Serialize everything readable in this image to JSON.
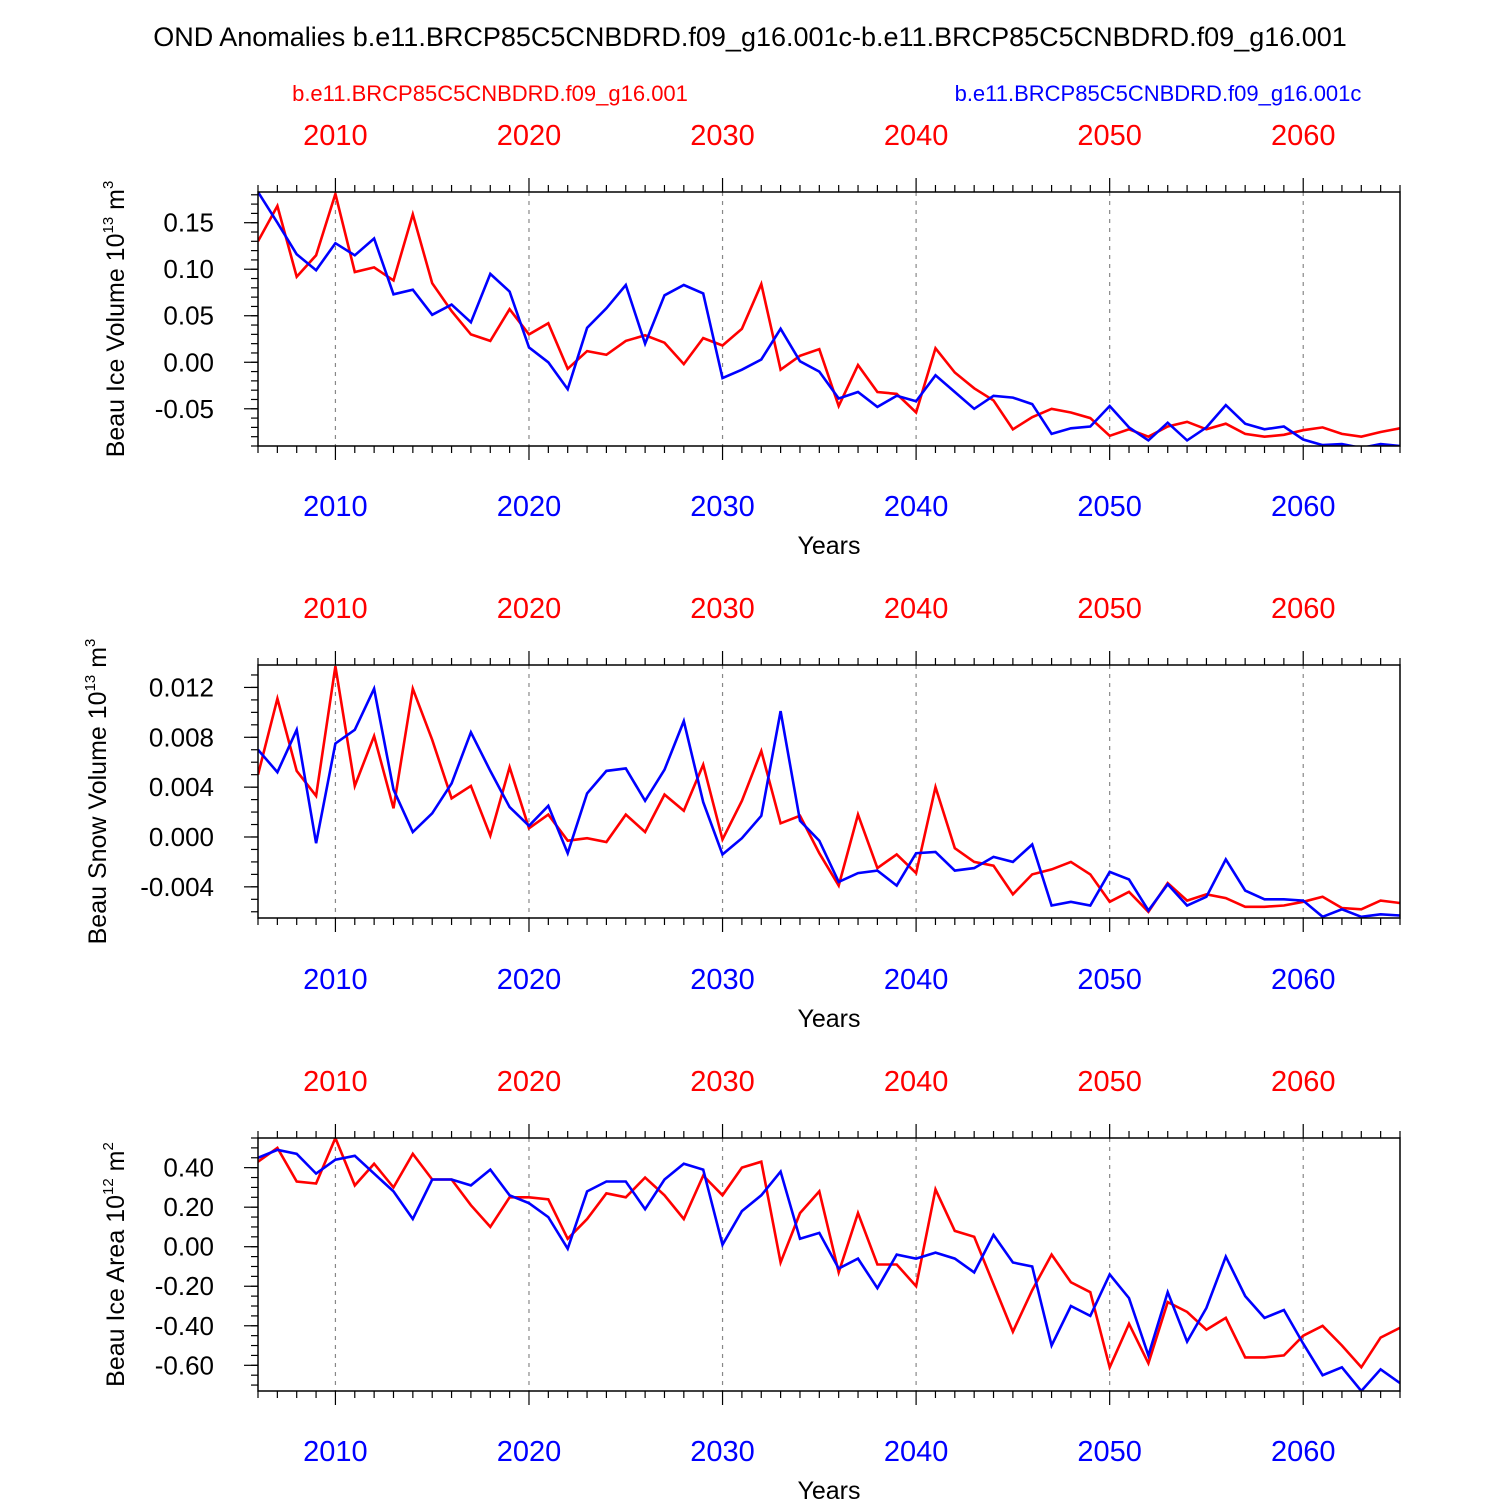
{
  "title": "OND Anomalies b.e11.BRCP85C5CNBDRD.f09_g16.001c-b.e11.BRCP85C5CNBDRD.f09_g16.001",
  "legend": {
    "left_label": "b.e11.BRCP85C5CNBDRD.f09_g16.001",
    "right_label": "b.e11.BRCP85C5CNBDRD.f09_g16.001c",
    "left_color": "#ff0000",
    "right_color": "#0000ff"
  },
  "colors": {
    "red": "#ff0000",
    "blue": "#0000ff",
    "grid": "#888888",
    "axis": "#000000"
  },
  "chart_data": [
    {
      "type": "line",
      "ylabel": "Beau Ice Volume 10",
      "ylabel_exp": "13",
      "ylabel_unit": " m",
      "ylabel_unit_exp": "3",
      "xlabel": "Years",
      "xlim": [
        2006,
        2065
      ],
      "ylim": [
        -0.09,
        0.183
      ],
      "xticks": [
        2010,
        2020,
        2030,
        2040,
        2050,
        2060
      ],
      "xtick_labels": [
        "2010",
        "2020",
        "2030",
        "2040",
        "2050",
        "2060"
      ],
      "yticks": [
        0.15,
        0.1,
        0.05,
        0.0,
        -0.05
      ],
      "ytick_labels": [
        "0.15",
        "0.10",
        "0.05",
        "0.00",
        "-0.05"
      ],
      "y_minor_step": 0.01,
      "vgrid": [
        2010,
        2020,
        2030,
        2040,
        2050,
        2060
      ],
      "series": [
        {
          "name": "b.e11.BRCP85C5CNBDRD.f09_g16.001",
          "color": "#ff0000",
          "x0": 2006,
          "values": [
            0.13,
            0.168,
            0.092,
            0.115,
            0.181,
            0.097,
            0.102,
            0.088,
            0.159,
            0.085,
            0.055,
            0.03,
            0.023,
            0.057,
            0.03,
            0.042,
            -0.007,
            0.012,
            0.008,
            0.023,
            0.029,
            0.021,
            -0.002,
            0.026,
            0.018,
            0.036,
            0.084,
            -0.008,
            0.007,
            0.014,
            -0.047,
            -0.003,
            -0.032,
            -0.034,
            -0.054,
            0.015,
            -0.011,
            -0.028,
            -0.041,
            -0.072,
            -0.059,
            -0.05,
            -0.054,
            -0.06,
            -0.079,
            -0.072,
            -0.08,
            -0.069,
            -0.064,
            -0.072,
            -0.066,
            -0.077,
            -0.08,
            -0.078,
            -0.073,
            -0.07,
            -0.077,
            -0.08,
            -0.075,
            -0.071
          ]
        },
        {
          "name": "b.e11.BRCP85C5CNBDRD.f09_g16.001c",
          "color": "#0000ff",
          "x0": 2006,
          "values": [
            0.183,
            0.15,
            0.116,
            0.099,
            0.128,
            0.115,
            0.133,
            0.073,
            0.078,
            0.051,
            0.062,
            0.043,
            0.095,
            0.076,
            0.016,
            0.0,
            -0.029,
            0.037,
            0.058,
            0.083,
            0.02,
            0.072,
            0.083,
            0.074,
            -0.017,
            -0.008,
            0.003,
            0.036,
            0.001,
            -0.01,
            -0.039,
            -0.032,
            -0.048,
            -0.036,
            -0.042,
            -0.014,
            -0.032,
            -0.05,
            -0.036,
            -0.038,
            -0.045,
            -0.077,
            -0.071,
            -0.069,
            -0.047,
            -0.07,
            -0.084,
            -0.065,
            -0.084,
            -0.07,
            -0.046,
            -0.066,
            -0.072,
            -0.069,
            -0.083,
            -0.089,
            -0.088,
            -0.092,
            -0.088,
            -0.09
          ]
        }
      ]
    },
    {
      "type": "line",
      "ylabel": "Beau Snow Volume 10",
      "ylabel_exp": "13",
      "ylabel_unit": " m",
      "ylabel_unit_exp": "3",
      "xlabel": "Years",
      "xlim": [
        2006,
        2065
      ],
      "ylim": [
        -0.0065,
        0.0138
      ],
      "xticks": [
        2010,
        2020,
        2030,
        2040,
        2050,
        2060
      ],
      "xtick_labels": [
        "2010",
        "2020",
        "2030",
        "2040",
        "2050",
        "2060"
      ],
      "yticks": [
        0.012,
        0.008,
        0.004,
        0.0,
        -0.004
      ],
      "ytick_labels": [
        "0.012",
        "0.008",
        "0.004",
        "0.000",
        "-0.004"
      ],
      "y_minor_step": 0.001,
      "vgrid": [
        2010,
        2020,
        2030,
        2040,
        2050,
        2060
      ],
      "series": [
        {
          "name": "b.e11.BRCP85C5CNBDRD.f09_g16.001",
          "color": "#ff0000",
          "x0": 2006,
          "values": [
            0.005,
            0.0111,
            0.0053,
            0.0033,
            0.0137,
            0.0041,
            0.0081,
            0.0023,
            0.0119,
            0.0078,
            0.0031,
            0.0041,
            0.0001,
            0.0056,
            0.0007,
            0.0018,
            -0.0003,
            -0.0001,
            -0.0004,
            0.0018,
            0.0004,
            0.0034,
            0.0021,
            0.0058,
            -0.0002,
            0.0029,
            0.0069,
            0.0011,
            0.0017,
            -0.0013,
            -0.0039,
            0.0018,
            -0.0025,
            -0.0014,
            -0.0029,
            0.004,
            -0.0009,
            -0.002,
            -0.0023,
            -0.0046,
            -0.003,
            -0.0026,
            -0.002,
            -0.003,
            -0.0052,
            -0.0044,
            -0.006,
            -0.0037,
            -0.0051,
            -0.0046,
            -0.0049,
            -0.0056,
            -0.0056,
            -0.0055,
            -0.0052,
            -0.0048,
            -0.0057,
            -0.0058,
            -0.0051,
            -0.0053
          ]
        },
        {
          "name": "b.e11.BRCP85C5CNBDRD.f09_g16.001c",
          "color": "#0000ff",
          "x0": 2006,
          "values": [
            0.007,
            0.0052,
            0.0086,
            -0.0005,
            0.0075,
            0.0086,
            0.0119,
            0.0038,
            0.0004,
            0.0019,
            0.0043,
            0.0084,
            0.0053,
            0.0024,
            0.0009,
            0.0025,
            -0.0013,
            0.0035,
            0.0053,
            0.0055,
            0.0029,
            0.0054,
            0.0093,
            0.0028,
            -0.0014,
            -0.0001,
            0.0017,
            0.0101,
            0.0013,
            -0.0003,
            -0.0036,
            -0.0029,
            -0.0027,
            -0.0039,
            -0.0013,
            -0.0012,
            -0.0027,
            -0.0025,
            -0.0016,
            -0.002,
            -0.0006,
            -0.0055,
            -0.0052,
            -0.0055,
            -0.0028,
            -0.0034,
            -0.0059,
            -0.0038,
            -0.0055,
            -0.0048,
            -0.0018,
            -0.0043,
            -0.005,
            -0.005,
            -0.0051,
            -0.0064,
            -0.0058,
            -0.0064,
            -0.0062,
            -0.0063
          ]
        }
      ]
    },
    {
      "type": "line",
      "ylabel": "Beau Ice Area 10",
      "ylabel_exp": "12",
      "ylabel_unit": " m",
      "ylabel_unit_exp": "2",
      "xlabel": "Years",
      "xlim": [
        2006,
        2065
      ],
      "ylim": [
        -0.73,
        0.55
      ],
      "xticks": [
        2010,
        2020,
        2030,
        2040,
        2050,
        2060
      ],
      "xtick_labels": [
        "2010",
        "2020",
        "2030",
        "2040",
        "2050",
        "2060"
      ],
      "yticks": [
        0.4,
        0.2,
        0.0,
        -0.2,
        -0.4,
        -0.6
      ],
      "ytick_labels": [
        "0.40",
        "0.20",
        "0.00",
        "-0.20",
        "-0.40",
        "-0.60"
      ],
      "y_minor_step": 0.05,
      "vgrid": [
        2010,
        2020,
        2030,
        2040,
        2050,
        2060
      ],
      "series": [
        {
          "name": "b.e11.BRCP85C5CNBDRD.f09_g16.001",
          "color": "#ff0000",
          "x0": 2006,
          "values": [
            0.43,
            0.5,
            0.33,
            0.32,
            0.55,
            0.31,
            0.42,
            0.3,
            0.47,
            0.34,
            0.34,
            0.21,
            0.1,
            0.25,
            0.25,
            0.24,
            0.04,
            0.14,
            0.27,
            0.25,
            0.35,
            0.26,
            0.14,
            0.36,
            0.26,
            0.4,
            0.43,
            -0.08,
            0.17,
            0.28,
            -0.13,
            0.17,
            -0.09,
            -0.09,
            -0.2,
            0.29,
            0.08,
            0.05,
            -0.19,
            -0.43,
            -0.22,
            -0.04,
            -0.18,
            -0.23,
            -0.61,
            -0.39,
            -0.59,
            -0.28,
            -0.33,
            -0.42,
            -0.36,
            -0.56,
            -0.56,
            -0.55,
            -0.45,
            -0.4,
            -0.5,
            -0.61,
            -0.46,
            -0.41
          ]
        },
        {
          "name": "b.e11.BRCP85C5CNBDRD.f09_g16.001c",
          "color": "#0000ff",
          "x0": 2006,
          "values": [
            0.45,
            0.49,
            0.47,
            0.37,
            0.44,
            0.46,
            0.37,
            0.28,
            0.14,
            0.34,
            0.34,
            0.31,
            0.39,
            0.26,
            0.22,
            0.15,
            -0.01,
            0.28,
            0.33,
            0.33,
            0.19,
            0.34,
            0.42,
            0.39,
            0.01,
            0.18,
            0.26,
            0.38,
            0.04,
            0.07,
            -0.11,
            -0.06,
            -0.21,
            -0.04,
            -0.06,
            -0.03,
            -0.06,
            -0.13,
            0.06,
            -0.08,
            -0.1,
            -0.5,
            -0.3,
            -0.35,
            -0.14,
            -0.26,
            -0.55,
            -0.23,
            -0.48,
            -0.31,
            -0.05,
            -0.25,
            -0.36,
            -0.32,
            -0.49,
            -0.65,
            -0.61,
            -0.73,
            -0.62,
            -0.69
          ]
        }
      ]
    }
  ]
}
